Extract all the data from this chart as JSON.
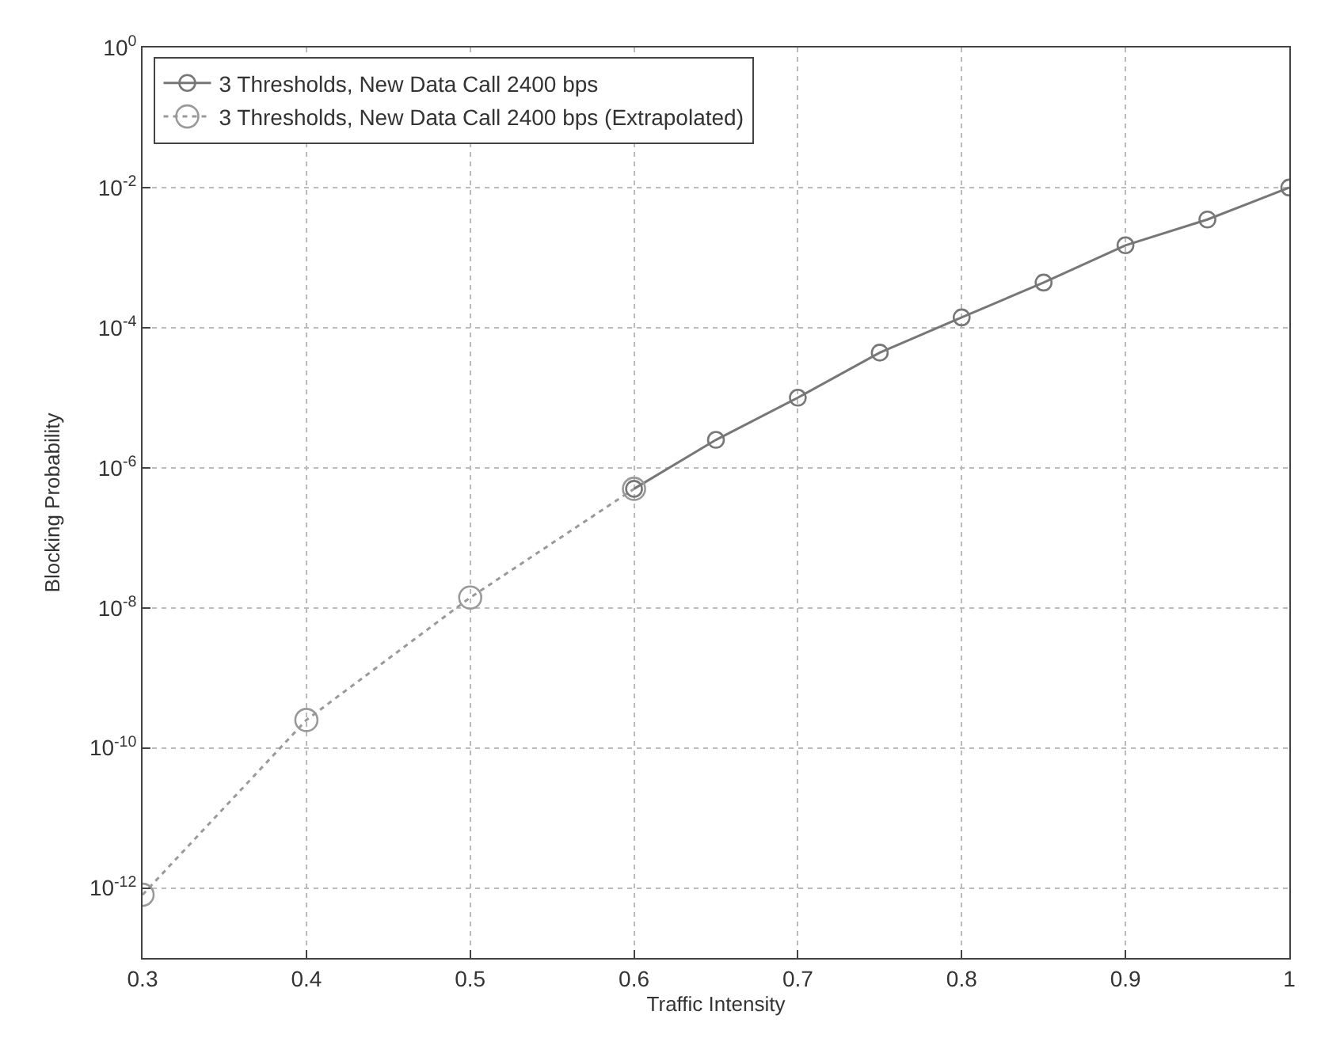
{
  "chart_data": {
    "type": "line",
    "xlabel": "Traffic Intensity",
    "ylabel": "Blocking Probability",
    "log": "y",
    "grid": true,
    "legend": "top left",
    "marker": "circle",
    "xlim": [
      0.3,
      1
    ],
    "xticks": [
      0.3,
      0.4,
      0.5,
      0.6,
      0.7,
      0.8,
      0.9,
      1
    ],
    "ylim": [
      1e-13,
      1
    ],
    "yticks": [
      {
        "value": 1,
        "label": "10$^{0}$"
      },
      {
        "value": 0.01,
        "label": "10$^{-2}$"
      },
      {
        "value": 0.0001,
        "label": "10$^{-4}$"
      },
      {
        "value": 1e-06,
        "label": "10$^{-6}$"
      },
      {
        "value": 1e-08,
        "label": "10$^{-8}$"
      },
      {
        "value": 1e-10,
        "label": "10$^{-10}$"
      },
      {
        "value": 1e-12,
        "label": "10$^{-12}$"
      }
    ],
    "series": [
      {
        "name": "3 Thresholds, New Data Call 2400 bps",
        "color": "#777777",
        "line_style": "solid",
        "x": [
          0.6,
          0.65,
          0.7,
          0.75,
          0.8,
          0.85,
          0.9,
          0.95,
          1
        ],
        "values": [
          5e-07,
          2.5e-06,
          1e-05,
          4.4e-05,
          0.00014,
          0.00044,
          0.0015,
          0.0035,
          0.01
        ]
      },
      {
        "name": "3 Thresholds, New Data Call 2400 bps (Extrapolated)",
        "color": "#999999",
        "line_style": "dotted",
        "x": [
          0.3,
          0.4,
          0.5,
          0.6
        ],
        "values": [
          8e-13,
          2.5e-10,
          1.4e-08,
          5e-07
        ]
      }
    ]
  }
}
